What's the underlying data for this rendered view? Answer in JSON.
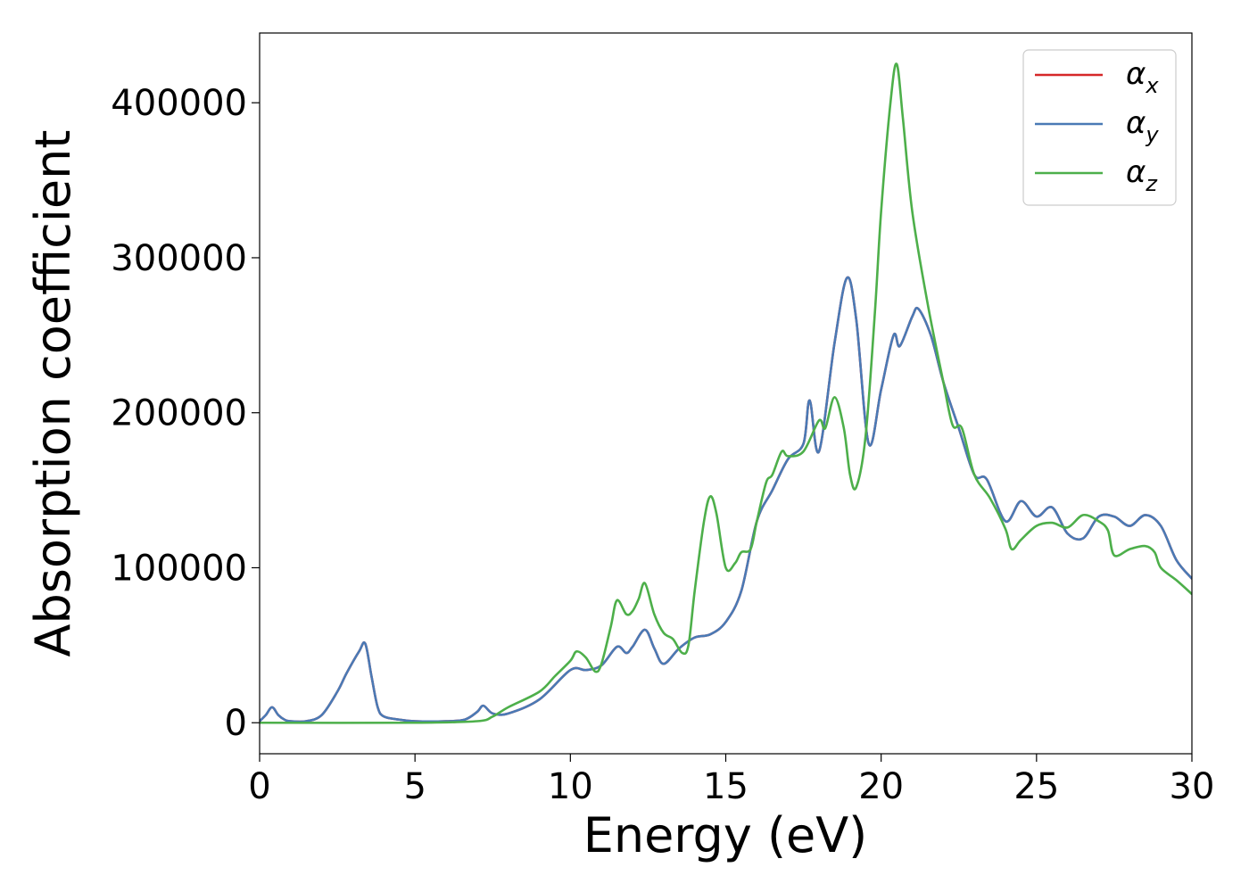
{
  "chart_data": {
    "type": "line",
    "title": "",
    "xlabel": "Energy (eV)",
    "ylabel": "Absorption coefficient",
    "xlim": [
      0,
      30
    ],
    "ylim": [
      -20000,
      445000
    ],
    "xticks": [
      0,
      5,
      10,
      15,
      20,
      25,
      30
    ],
    "xtick_labels": [
      "0",
      "5",
      "10",
      "15",
      "20",
      "25",
      "30"
    ],
    "yticks": [
      0,
      100000,
      200000,
      300000,
      400000
    ],
    "ytick_labels": [
      "0",
      "100000",
      "200000",
      "300000",
      "400000"
    ],
    "grid": false,
    "legend_position": "top-right",
    "series": [
      {
        "name": "αx",
        "legend_base": "α",
        "legend_sub": "x",
        "color": "#d62728",
        "x": [
          0,
          0.2,
          0.4,
          0.6,
          0.8,
          1.0,
          1.5,
          2.0,
          2.5,
          2.8,
          3.2,
          3.4,
          3.6,
          3.8,
          4.0,
          4.5,
          5.0,
          6.0,
          6.6,
          7.0,
          7.2,
          7.5,
          8.0,
          9.0,
          10.0,
          10.5,
          11.0,
          11.5,
          11.8,
          12.0,
          12.4,
          12.7,
          13.0,
          13.5,
          14.0,
          14.5,
          15.0,
          15.5,
          16.0,
          16.5,
          17.0,
          17.5,
          17.7,
          18.0,
          18.5,
          18.9,
          19.2,
          19.6,
          20.0,
          20.4,
          20.6,
          21.0,
          21.2,
          21.6,
          22.0,
          22.5,
          23.0,
          23.4,
          24.0,
          24.5,
          25.0,
          25.5,
          26.0,
          26.5,
          27.0,
          27.5,
          28.0,
          28.5,
          29.0,
          29.5,
          30.0
        ],
        "values": [
          1000,
          5000,
          10000,
          5000,
          2000,
          1000,
          1000,
          5000,
          20000,
          32000,
          46000,
          51000,
          30000,
          10000,
          4000,
          2000,
          1000,
          1000,
          2000,
          7000,
          11000,
          6000,
          6000,
          15000,
          34000,
          34000,
          37000,
          49000,
          45000,
          49000,
          60000,
          48000,
          38000,
          48000,
          55000,
          57000,
          65000,
          85000,
          130000,
          150000,
          170000,
          180000,
          208000,
          175000,
          245000,
          287000,
          260000,
          180000,
          215000,
          250000,
          243000,
          262000,
          267000,
          250000,
          220000,
          190000,
          160000,
          157000,
          130000,
          143000,
          133000,
          139000,
          122000,
          119000,
          133000,
          133000,
          127000,
          134000,
          127000,
          105000,
          93000
        ]
      },
      {
        "name": "αy",
        "legend_base": "α",
        "legend_sub": "y",
        "color": "#4a7ab5",
        "x": [
          0,
          0.2,
          0.4,
          0.6,
          0.8,
          1.0,
          1.5,
          2.0,
          2.5,
          2.8,
          3.2,
          3.4,
          3.6,
          3.8,
          4.0,
          4.5,
          5.0,
          6.0,
          6.6,
          7.0,
          7.2,
          7.5,
          8.0,
          9.0,
          10.0,
          10.5,
          11.0,
          11.5,
          11.8,
          12.0,
          12.4,
          12.7,
          13.0,
          13.5,
          14.0,
          14.5,
          15.0,
          15.5,
          16.0,
          16.5,
          17.0,
          17.5,
          17.7,
          18.0,
          18.5,
          18.9,
          19.2,
          19.6,
          20.0,
          20.4,
          20.6,
          21.0,
          21.2,
          21.6,
          22.0,
          22.5,
          23.0,
          23.4,
          24.0,
          24.5,
          25.0,
          25.5,
          26.0,
          26.5,
          27.0,
          27.5,
          28.0,
          28.5,
          29.0,
          29.5,
          30.0
        ],
        "values": [
          1000,
          5000,
          10000,
          5000,
          2000,
          1000,
          1000,
          5000,
          20000,
          32000,
          46000,
          51000,
          30000,
          10000,
          4000,
          2000,
          1000,
          1000,
          2000,
          7000,
          11000,
          6000,
          6000,
          15000,
          34000,
          34000,
          37000,
          49000,
          45000,
          49000,
          60000,
          48000,
          38000,
          48000,
          55000,
          57000,
          65000,
          85000,
          130000,
          150000,
          170000,
          180000,
          208000,
          175000,
          245000,
          287000,
          260000,
          180000,
          215000,
          250000,
          243000,
          262000,
          267000,
          250000,
          220000,
          190000,
          160000,
          157000,
          130000,
          143000,
          133000,
          139000,
          122000,
          119000,
          133000,
          133000,
          127000,
          134000,
          127000,
          105000,
          93000
        ]
      },
      {
        "name": "αz",
        "legend_base": "α",
        "legend_sub": "z",
        "color": "#4daf4a",
        "x": [
          0,
          5,
          7.0,
          7.5,
          8.0,
          9.0,
          9.5,
          10.0,
          10.2,
          10.5,
          10.8,
          11.0,
          11.3,
          11.5,
          11.8,
          12.0,
          12.2,
          12.4,
          12.7,
          13.0,
          13.3,
          13.6,
          13.8,
          14.0,
          14.3,
          14.5,
          14.7,
          15.0,
          15.3,
          15.5,
          15.8,
          16.0,
          16.3,
          16.5,
          16.8,
          17.0,
          17.5,
          18.0,
          18.2,
          18.5,
          18.8,
          19.0,
          19.2,
          19.5,
          19.8,
          20.0,
          20.3,
          20.5,
          20.7,
          21.0,
          21.5,
          22.0,
          22.3,
          22.6,
          23.0,
          23.5,
          24.0,
          24.2,
          24.5,
          25.0,
          25.5,
          26.0,
          26.5,
          27.0,
          27.3,
          27.5,
          28.0,
          28.5,
          28.8,
          29.0,
          29.5,
          30.0
        ],
        "values": [
          0,
          0,
          1000,
          4000,
          10000,
          20000,
          30000,
          40000,
          46000,
          42000,
          33000,
          38000,
          62000,
          79000,
          70000,
          72000,
          80000,
          90000,
          70000,
          58000,
          54000,
          45000,
          50000,
          85000,
          130000,
          146000,
          135000,
          100000,
          103000,
          110000,
          112000,
          130000,
          155000,
          160000,
          175000,
          172000,
          175000,
          195000,
          190000,
          210000,
          190000,
          160000,
          152000,
          185000,
          265000,
          330000,
          400000,
          425000,
          390000,
          330000,
          270000,
          220000,
          192000,
          190000,
          160000,
          145000,
          125000,
          112000,
          118000,
          127000,
          129000,
          126000,
          134000,
          130000,
          124000,
          108000,
          112000,
          114000,
          110000,
          100000,
          92000,
          83000
        ]
      }
    ]
  }
}
